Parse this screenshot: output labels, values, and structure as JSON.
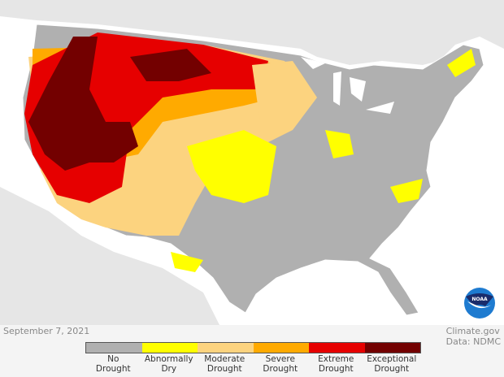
{
  "date": "September 7, 2021",
  "credit": {
    "site": "Climate.gov",
    "source": "Data: NDMC"
  },
  "logo_text": "NOAA",
  "legend": [
    {
      "label": "No\nDrought",
      "color": "#b0b0b0"
    },
    {
      "label": "Abnormally\nDry",
      "color": "#ffff00"
    },
    {
      "label": "Moderate\nDrought",
      "color": "#fcd37f"
    },
    {
      "label": "Severe\nDrought",
      "color": "#ffaa00"
    },
    {
      "label": "Extreme\nDrought",
      "color": "#e60000"
    },
    {
      "label": "Exceptional\nDrought",
      "color": "#730000"
    }
  ]
}
